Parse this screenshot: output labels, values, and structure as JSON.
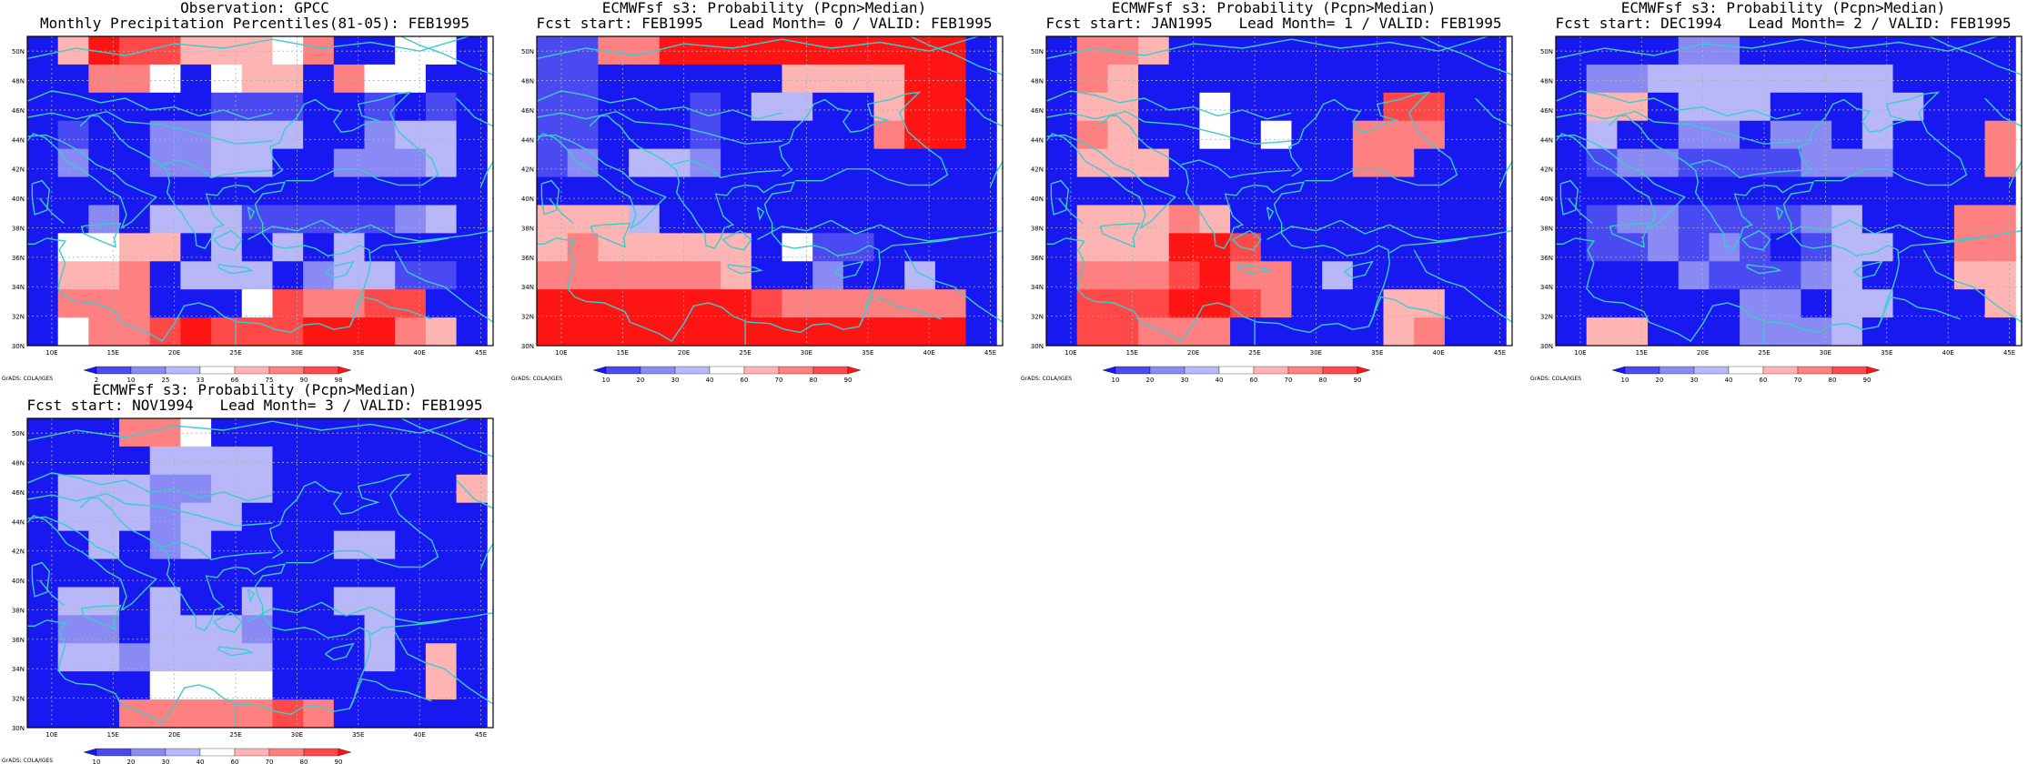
{
  "colors": {
    "coast": "#3ccccc",
    "grid": "#b0b0b0",
    "frame": "#000000",
    "neutral": "#ffffff"
  },
  "lon_ticks": [
    "10E",
    "15E",
    "20E",
    "25E",
    "30E",
    "35E",
    "40E",
    "45E"
  ],
  "lat_ticks": [
    "30N",
    "32N",
    "34N",
    "36N",
    "38N",
    "40N",
    "42N",
    "44N",
    "46N",
    "48N",
    "50N"
  ],
  "credit": "GrADS: COLA/IGES",
  "grid_extent": {
    "lon_min": 8,
    "lon_max": 46,
    "lat_min": 30,
    "lat_max": 51,
    "cell_deg": 2.5
  },
  "panels": [
    {
      "title1": "Observation: GPCC",
      "title2": "Monthly Precipitation Percentiles(81-05): FEB1995",
      "colorbar": {
        "labels": [
          "2",
          "10",
          "25",
          "33",
          "66",
          "75",
          "90",
          "98"
        ],
        "colors": [
          "#1818f0",
          "#4a4af2",
          "#8a8af4",
          "#b8b8f8",
          "#ffffff",
          "#ffb4b4",
          "#ff8080",
          "#ff4848",
          "#ff1414"
        ]
      },
      "grid": [
        [
          0,
          5,
          8,
          7,
          7,
          5,
          5,
          5,
          4,
          6,
          0,
          0,
          4,
          4,
          0
        ],
        [
          0,
          0,
          6,
          6,
          4,
          0,
          4,
          5,
          5,
          0,
          6,
          4,
          4,
          0,
          0
        ],
        [
          0,
          0,
          0,
          0,
          0,
          0,
          1,
          1,
          1,
          0,
          0,
          1,
          0,
          1,
          0
        ],
        [
          0,
          1,
          0,
          0,
          2,
          2,
          3,
          3,
          3,
          0,
          0,
          2,
          3,
          3,
          0
        ],
        [
          0,
          2,
          0,
          0,
          2,
          2,
          3,
          3,
          0,
          0,
          2,
          2,
          2,
          3,
          0
        ],
        [
          0,
          0,
          0,
          0,
          0,
          0,
          0,
          0,
          0,
          0,
          0,
          0,
          0,
          0,
          0
        ],
        [
          0,
          0,
          2,
          0,
          3,
          3,
          3,
          1,
          1,
          1,
          1,
          1,
          2,
          3,
          0
        ],
        [
          0,
          4,
          4,
          5,
          5,
          0,
          3,
          0,
          3,
          0,
          3,
          0,
          0,
          0,
          0
        ],
        [
          0,
          5,
          5,
          6,
          0,
          3,
          3,
          3,
          0,
          2,
          3,
          3,
          1,
          1,
          0
        ],
        [
          0,
          6,
          6,
          6,
          0,
          0,
          0,
          4,
          7,
          6,
          6,
          7,
          7,
          0,
          0
        ],
        [
          0,
          4,
          6,
          6,
          7,
          8,
          7,
          7,
          7,
          8,
          8,
          8,
          6,
          5,
          0
        ]
      ]
    },
    {
      "title1": "ECMWFsf s3: Probability (Pcpn>Median)",
      "title2": "Fcst start: FEB1995   Lead Month= 0 / VALID: FEB1995",
      "colorbar": {
        "labels": [
          "10",
          "20",
          "30",
          "40",
          "60",
          "70",
          "80",
          "90"
        ],
        "colors": [
          "#1818f0",
          "#4a4af2",
          "#8a8af4",
          "#b8b8f8",
          "#ffffff",
          "#ffb4b4",
          "#ff8080",
          "#ff4848",
          "#ff1414"
        ]
      },
      "grid": [
        [
          1,
          1,
          6,
          6,
          8,
          8,
          8,
          8,
          8,
          8,
          8,
          8,
          8,
          8,
          0
        ],
        [
          1,
          1,
          0,
          0,
          0,
          0,
          0,
          0,
          5,
          5,
          5,
          5,
          8,
          8,
          0
        ],
        [
          1,
          1,
          0,
          0,
          0,
          1,
          0,
          3,
          3,
          0,
          0,
          5,
          8,
          8,
          0
        ],
        [
          1,
          1,
          0,
          0,
          0,
          1,
          0,
          0,
          0,
          0,
          0,
          6,
          8,
          8,
          0
        ],
        [
          1,
          2,
          0,
          3,
          3,
          2,
          0,
          0,
          0,
          0,
          0,
          0,
          0,
          0,
          0
        ],
        [
          0,
          0,
          0,
          0,
          0,
          0,
          0,
          0,
          0,
          0,
          0,
          0,
          0,
          0,
          0
        ],
        [
          5,
          5,
          5,
          3,
          0,
          0,
          0,
          0,
          0,
          0,
          0,
          0,
          0,
          0,
          0
        ],
        [
          5,
          6,
          5,
          5,
          5,
          5,
          5,
          0,
          4,
          1,
          1,
          0,
          0,
          0,
          0
        ],
        [
          6,
          6,
          6,
          6,
          6,
          6,
          5,
          0,
          0,
          2,
          0,
          0,
          3,
          0,
          0
        ],
        [
          8,
          8,
          8,
          8,
          8,
          8,
          8,
          7,
          6,
          6,
          6,
          6,
          6,
          6,
          0
        ],
        [
          8,
          8,
          8,
          8,
          8,
          8,
          8,
          8,
          8,
          8,
          8,
          8,
          8,
          8,
          0
        ]
      ]
    },
    {
      "title1": "ECMWFsf s3: Probability (Pcpn>Median)",
      "title2": "Fcst start: JAN1995   Lead Month= 1 / VALID: FEB1995",
      "colorbar": {
        "labels": [
          "10",
          "20",
          "30",
          "40",
          "60",
          "70",
          "80",
          "90"
        ],
        "colors": [
          "#1818f0",
          "#4a4af2",
          "#8a8af4",
          "#b8b8f8",
          "#ffffff",
          "#ffb4b4",
          "#ff8080",
          "#ff4848",
          "#ff1414"
        ]
      },
      "grid": [
        [
          0,
          6,
          6,
          5,
          0,
          0,
          0,
          0,
          0,
          0,
          0,
          0,
          0,
          0,
          0
        ],
        [
          0,
          6,
          5,
          0,
          0,
          0,
          0,
          0,
          0,
          0,
          0,
          0,
          0,
          0,
          0
        ],
        [
          0,
          5,
          5,
          0,
          0,
          4,
          0,
          0,
          0,
          0,
          0,
          7,
          7,
          0,
          0
        ],
        [
          0,
          6,
          5,
          0,
          0,
          4,
          0,
          4,
          0,
          0,
          6,
          6,
          6,
          0,
          0
        ],
        [
          0,
          5,
          5,
          5,
          0,
          0,
          0,
          0,
          0,
          0,
          6,
          6,
          0,
          0,
          0
        ],
        [
          0,
          0,
          0,
          0,
          0,
          0,
          0,
          0,
          0,
          0,
          0,
          0,
          0,
          0,
          0
        ],
        [
          0,
          5,
          5,
          5,
          6,
          5,
          0,
          0,
          0,
          0,
          0,
          0,
          0,
          0,
          0
        ],
        [
          0,
          5,
          5,
          5,
          8,
          8,
          7,
          0,
          0,
          0,
          0,
          0,
          0,
          0,
          0
        ],
        [
          0,
          6,
          6,
          6,
          7,
          8,
          6,
          6,
          0,
          3,
          0,
          0,
          0,
          0,
          0
        ],
        [
          0,
          7,
          7,
          7,
          8,
          8,
          7,
          6,
          0,
          0,
          0,
          5,
          5,
          0,
          0
        ],
        [
          0,
          7,
          7,
          6,
          6,
          6,
          0,
          0,
          0,
          0,
          0,
          5,
          6,
          0,
          0
        ]
      ]
    },
    {
      "title1": "ECMWFsf s3: Probability (Pcpn>Median)",
      "title2": "Fcst start: DEC1994   Lead Month= 2 / VALID: FEB1995",
      "colorbar": {
        "labels": [
          "10",
          "20",
          "30",
          "40",
          "60",
          "70",
          "80",
          "90"
        ],
        "colors": [
          "#1818f0",
          "#4a4af2",
          "#8a8af4",
          "#b8b8f8",
          "#ffffff",
          "#ffb4b4",
          "#ff8080",
          "#ff4848",
          "#ff1414"
        ]
      },
      "grid": [
        [
          0,
          0,
          0,
          0,
          2,
          2,
          0,
          0,
          0,
          0,
          0,
          0,
          0,
          0,
          0
        ],
        [
          0,
          2,
          2,
          3,
          3,
          3,
          3,
          3,
          3,
          3,
          3,
          0,
          0,
          0,
          0
        ],
        [
          0,
          5,
          5,
          0,
          3,
          3,
          3,
          0,
          0,
          0,
          3,
          3,
          0,
          0,
          0
        ],
        [
          0,
          3,
          0,
          0,
          2,
          2,
          0,
          2,
          2,
          0,
          3,
          0,
          0,
          0,
          6
        ],
        [
          0,
          1,
          2,
          2,
          1,
          1,
          1,
          1,
          2,
          2,
          2,
          0,
          0,
          0,
          6
        ],
        [
          0,
          0,
          0,
          0,
          0,
          0,
          0,
          0,
          0,
          0,
          0,
          0,
          0,
          0,
          0
        ],
        [
          0,
          1,
          2,
          2,
          1,
          1,
          1,
          1,
          2,
          3,
          0,
          0,
          0,
          6,
          6
        ],
        [
          0,
          1,
          1,
          2,
          1,
          2,
          1,
          0,
          1,
          3,
          3,
          0,
          0,
          6,
          6
        ],
        [
          0,
          0,
          0,
          0,
          2,
          1,
          1,
          1,
          2,
          3,
          0,
          0,
          0,
          5,
          5
        ],
        [
          0,
          0,
          0,
          0,
          0,
          0,
          2,
          2,
          0,
          3,
          3,
          0,
          0,
          0,
          5
        ],
        [
          0,
          5,
          5,
          0,
          0,
          0,
          2,
          2,
          2,
          3,
          0,
          0,
          0,
          0,
          0
        ]
      ]
    },
    {
      "title1": "ECMWFsf s3: Probability (Pcpn>Median)",
      "title2": "Fcst start: NOV1994   Lead Month= 3 / VALID: FEB1995",
      "colorbar": {
        "labels": [
          "10",
          "20",
          "30",
          "40",
          "60",
          "70",
          "80",
          "90"
        ],
        "colors": [
          "#1818f0",
          "#4a4af2",
          "#8a8af4",
          "#b8b8f8",
          "#ffffff",
          "#ffb4b4",
          "#ff8080",
          "#ff4848",
          "#ff1414"
        ]
      },
      "grid": [
        [
          0,
          0,
          0,
          6,
          6,
          4,
          0,
          0,
          0,
          0,
          0,
          0,
          0,
          0,
          0
        ],
        [
          0,
          0,
          0,
          0,
          3,
          3,
          3,
          3,
          0,
          0,
          0,
          0,
          0,
          0,
          0
        ],
        [
          0,
          3,
          3,
          3,
          2,
          2,
          3,
          3,
          0,
          0,
          0,
          0,
          0,
          0,
          5
        ],
        [
          0,
          3,
          3,
          3,
          2,
          3,
          3,
          0,
          0,
          0,
          0,
          0,
          0,
          0,
          0
        ],
        [
          0,
          0,
          3,
          0,
          2,
          3,
          0,
          0,
          0,
          0,
          3,
          3,
          0,
          0,
          0
        ],
        [
          0,
          0,
          0,
          0,
          0,
          0,
          0,
          0,
          0,
          0,
          0,
          0,
          0,
          0,
          0
        ],
        [
          0,
          3,
          3,
          0,
          3,
          0,
          0,
          3,
          0,
          0,
          3,
          3,
          0,
          0,
          0
        ],
        [
          0,
          2,
          2,
          0,
          3,
          3,
          3,
          2,
          0,
          0,
          0,
          3,
          0,
          0,
          0
        ],
        [
          0,
          3,
          3,
          2,
          3,
          3,
          3,
          3,
          0,
          0,
          0,
          3,
          0,
          5,
          0
        ],
        [
          0,
          0,
          0,
          0,
          4,
          4,
          4,
          4,
          0,
          0,
          0,
          0,
          0,
          5,
          0
        ],
        [
          0,
          0,
          0,
          6,
          6,
          6,
          6,
          6,
          7,
          6,
          0,
          0,
          0,
          0,
          0
        ]
      ]
    }
  ]
}
